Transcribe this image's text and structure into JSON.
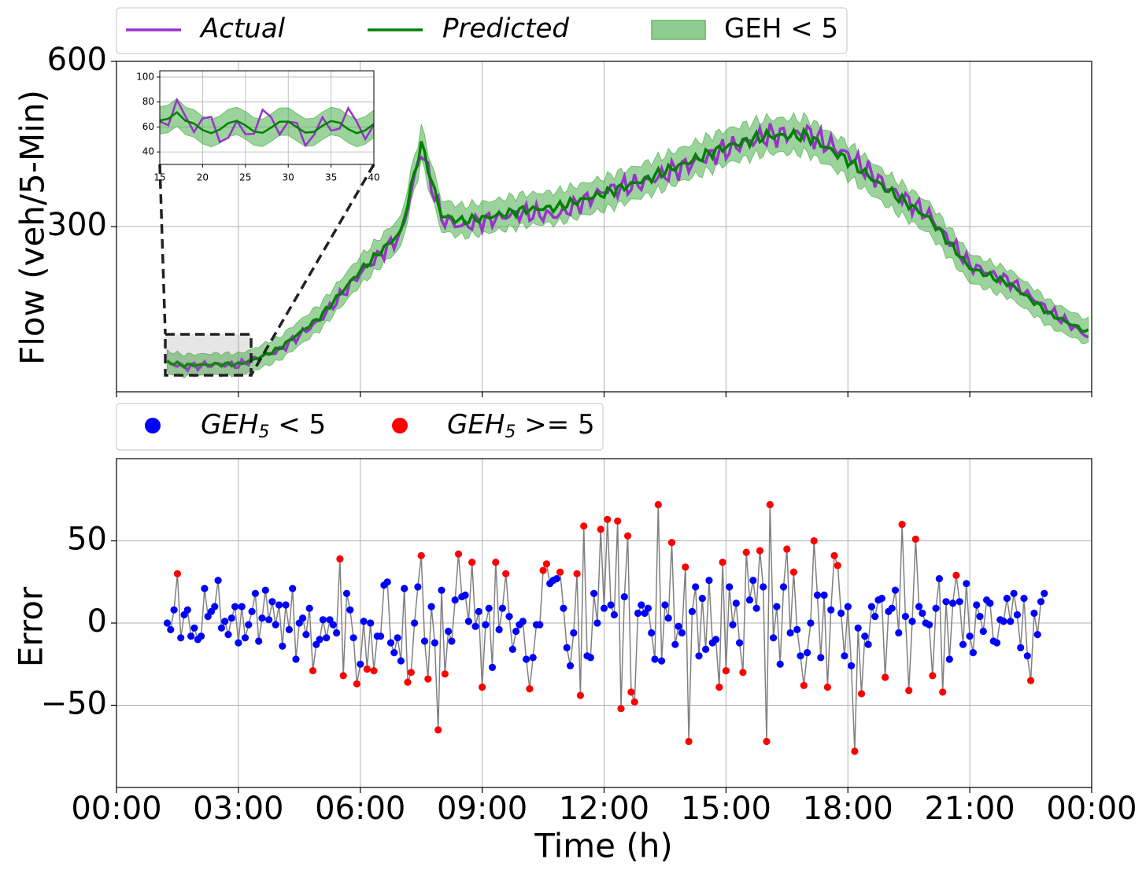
{
  "legend_top": [
    {
      "label": "Actual",
      "italic": true,
      "kind": "line",
      "color": "#9932cc"
    },
    {
      "label": "Predicted",
      "italic": true,
      "kind": "line",
      "color": "#008000"
    },
    {
      "label": "GEH < 5",
      "italic": false,
      "kind": "patch",
      "color": "#8fcc8f"
    }
  ],
  "legend_bottom": [
    {
      "label_main": "GEH",
      "label_sub": "5",
      "label_rest": " < 5",
      "color": "#0000ff"
    },
    {
      "label_main": "GEH",
      "label_sub": "5",
      "label_rest": " >= 5",
      "color": "#ff0000"
    }
  ],
  "colors": {
    "actual": "#9932cc",
    "predicted": "#008000",
    "band": "#3aa83a",
    "grid": "#b0b0b0",
    "error_line": "#808080",
    "ok": "#0000ff",
    "bad": "#ff0000"
  },
  "x_tick_labels": [
    "00:00",
    "03:00",
    "06:00",
    "09:00",
    "12:00",
    "15:00",
    "18:00",
    "21:00",
    "00:00"
  ],
  "x_label": "Time (h)",
  "chart_data": [
    {
      "type": "line",
      "ylabel": "Flow (veh/5-Min)",
      "y_ticks": [
        300,
        600
      ],
      "ylim": [
        0,
        600
      ],
      "xlim": [
        0,
        288
      ],
      "grid": true,
      "legend_position": "top-left outside",
      "x_anchor_index": [
        15,
        20,
        30,
        36,
        40,
        48,
        60,
        72,
        84,
        90,
        96,
        102,
        108,
        120,
        130,
        144,
        156,
        168,
        180,
        192,
        204,
        216,
        228,
        240,
        252,
        264,
        276,
        287
      ],
      "actual_anchor": [
        53,
        45,
        50,
        48,
        58,
        75,
        130,
        215,
        285,
        440,
        315,
        300,
        310,
        325,
        320,
        365,
        380,
        410,
        440,
        465,
        470,
        430,
        370,
        320,
        230,
        200,
        145,
        100
      ],
      "predicted_anchor": [
        54,
        48,
        50,
        50,
        57,
        78,
        135,
        220,
        290,
        450,
        320,
        310,
        315,
        330,
        335,
        360,
        385,
        415,
        445,
        465,
        465,
        420,
        365,
        315,
        225,
        195,
        140,
        108
      ],
      "band_width": 14,
      "inset": {
        "xlim": [
          15,
          40
        ],
        "ylim": [
          30,
          105
        ],
        "x_ticks": [
          15,
          20,
          25,
          30,
          35,
          40
        ],
        "y_ticks": [
          40,
          60,
          80,
          100
        ],
        "zoom_box_xlim": [
          15,
          40
        ],
        "zoom_box_ylim": [
          30,
          105
        ]
      }
    },
    {
      "type": "scatter",
      "ylabel": "Error",
      "y_ticks": [
        -50,
        0,
        50
      ],
      "ylim": [
        -100,
        100
      ],
      "xlim": [
        0,
        288
      ],
      "grid": true,
      "legend_position": "top-left outside",
      "threshold": "GEH_5 >= 5 shown red",
      "x_start_index": 15,
      "values": [
        0,
        -4,
        8,
        30,
        -9,
        5,
        8,
        -8,
        -3,
        -10,
        -8,
        21,
        4,
        7,
        10,
        26,
        -3,
        1,
        -7,
        3,
        10,
        -12,
        10,
        -9,
        -1,
        7,
        18,
        -11,
        3,
        20,
        2,
        13,
        -1,
        11,
        -14,
        11,
        -4,
        21,
        -22,
        0,
        3,
        -7,
        9,
        -29,
        -13,
        -10,
        2,
        -9,
        2,
        -1,
        -6,
        39,
        -32,
        18,
        8,
        -9,
        -37,
        -25,
        1,
        -28,
        0,
        -29,
        -8,
        -8,
        23,
        25,
        -12,
        -18,
        -9,
        -23,
        21,
        -36,
        -30,
        0,
        22,
        41,
        -11,
        -34,
        10,
        -12,
        -65,
        20,
        -31,
        -5,
        -11,
        14,
        42,
        16,
        17,
        1,
        37,
        -2,
        7,
        -39,
        -1,
        9,
        -27,
        37,
        -4,
        9,
        30,
        4,
        -16,
        -5,
        -1,
        1,
        -22,
        -40,
        -21,
        -1,
        -1,
        32,
        36,
        24,
        26,
        27,
        31,
        9,
        -15,
        -26,
        -6,
        30,
        -44,
        59,
        -20,
        -21,
        18,
        0,
        57,
        9,
        63,
        11,
        5,
        62,
        -52,
        16,
        53,
        -42,
        -48,
        6,
        11,
        6,
        9,
        -6,
        -22,
        72,
        -23,
        11,
        3,
        49,
        -13,
        -2,
        -6,
        34,
        -72,
        7,
        22,
        -20,
        15,
        -16,
        26,
        -12,
        -10,
        -39,
        37,
        -29,
        22,
        -1,
        12,
        -12,
        -30,
        43,
        14,
        26,
        9,
        44,
        22,
        -72,
        72,
        -9,
        10,
        -25,
        22,
        45,
        -6,
        31,
        -4,
        -20,
        -38,
        -18,
        0,
        50,
        17,
        -21,
        17,
        -39,
        8,
        41,
        35,
        6,
        -20,
        10,
        -26,
        -78,
        -3,
        -43,
        -8,
        -13,
        10,
        4,
        14,
        15,
        -33,
        7,
        9,
        20,
        -6,
        60,
        4,
        -41,
        1,
        51,
        10,
        6,
        0,
        -1,
        -32,
        9,
        27,
        -42,
        13,
        -22,
        12,
        29,
        13,
        -13,
        24,
        -8,
        -18,
        11,
        4,
        -5,
        14,
        12,
        -11,
        -12,
        2,
        1,
        15,
        1,
        18,
        5,
        -15,
        15,
        -20,
        -35,
        6,
        -7,
        13,
        18
      ]
    }
  ]
}
